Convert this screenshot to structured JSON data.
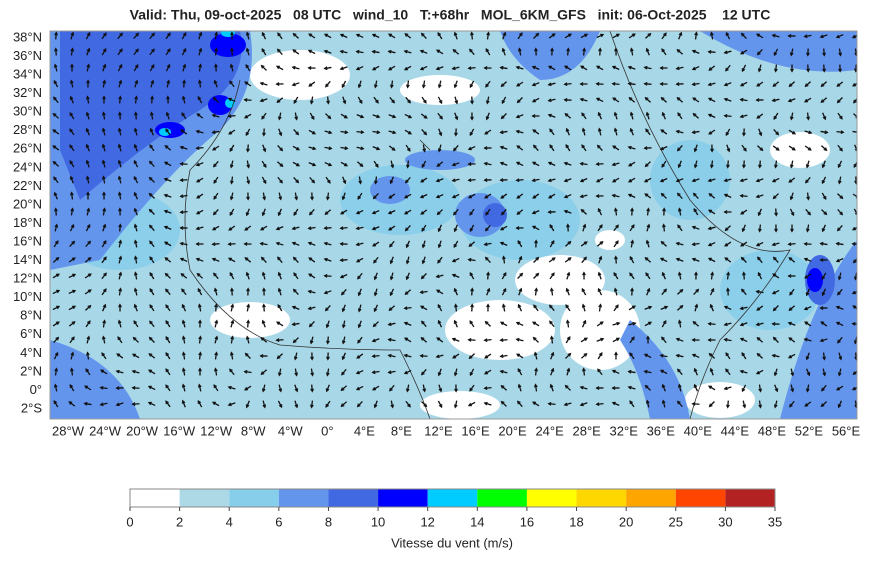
{
  "header": {
    "title": "Valid: Thu, 09-oct-2025   08 UTC   wind_10   T:+68hr   MOL_6KM_GFS   init: 06-Oct-2025    12 UTC"
  },
  "map": {
    "lat_labels": [
      "38°N",
      "36°N",
      "34°N",
      "32°N",
      "30°N",
      "28°N",
      "26°N",
      "24°N",
      "22°N",
      "20°N",
      "18°N",
      "16°N",
      "14°N",
      "12°N",
      "10°N",
      "8°N",
      "6°N",
      "4°N",
      "2°N",
      "0°",
      "2°S"
    ],
    "lon_labels": [
      "28°W",
      "24°W",
      "20°W",
      "16°W",
      "12°W",
      "8°W",
      "4°W",
      "0°",
      "4°E",
      "8°E",
      "12°E",
      "16°E",
      "20°E",
      "24°E",
      "28°E",
      "32°E",
      "36°E",
      "40°E",
      "44°E",
      "48°E",
      "52°E",
      "56°E"
    ]
  },
  "colorbar": {
    "ticks": [
      0,
      2,
      4,
      6,
      8,
      10,
      12,
      14,
      16,
      18,
      20,
      25,
      30,
      35
    ],
    "colors": [
      "#ffffff",
      "#add8e6",
      "#87ceeb",
      "#6495ed",
      "#4169e1",
      "#0000ff",
      "#00ccff",
      "#00ff00",
      "#ffff00",
      "#ffd700",
      "#ffa500",
      "#ff4500",
      "#b22222"
    ],
    "label": "Vitesse du vent (m/s)"
  }
}
